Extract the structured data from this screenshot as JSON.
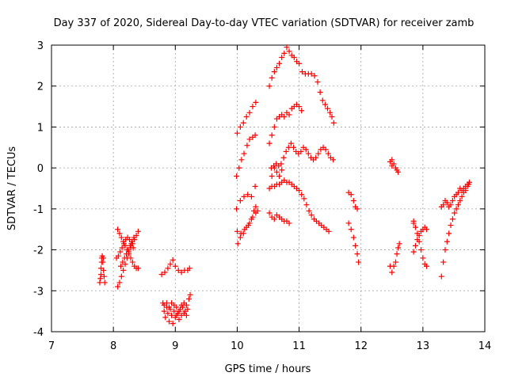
{
  "chart_data": {
    "type": "scatter",
    "title": "Day 337 of 2020, Sidereal Day-to-day VTEC variation (SDTVAR) for receiver zamb",
    "xlabel": "GPS time / hours",
    "ylabel": "SDTVAR / TECUs",
    "xlim": [
      7,
      14
    ],
    "ylim": [
      -4,
      3
    ],
    "xticks": [
      "7",
      "8",
      "9",
      "10",
      "11",
      "12",
      "13",
      "14"
    ],
    "yticks": [
      "-4",
      "-3",
      "-2",
      "-1",
      "0",
      "1",
      "2",
      "3"
    ],
    "grid": true,
    "marker": "+",
    "color": "#ff0000",
    "series": [
      {
        "points": [
          [
            7.78,
            -2.8
          ],
          [
            7.79,
            -2.7
          ],
          [
            7.8,
            -2.6
          ],
          [
            7.8,
            -2.45
          ],
          [
            7.81,
            -2.3
          ],
          [
            7.81,
            -2.2
          ],
          [
            7.82,
            -2.15
          ],
          [
            7.83,
            -2.3
          ],
          [
            7.84,
            -2.5
          ],
          [
            7.85,
            -2.65
          ],
          [
            7.86,
            -2.8
          ],
          [
            7.84,
            -2.2
          ],
          [
            8.07,
            -2.9
          ],
          [
            8.1,
            -2.8
          ],
          [
            8.13,
            -2.65
          ],
          [
            8.16,
            -2.5
          ],
          [
            8.19,
            -2.35
          ],
          [
            8.22,
            -2.2
          ],
          [
            8.25,
            -2.05
          ],
          [
            8.28,
            -1.95
          ],
          [
            8.31,
            -1.85
          ],
          [
            8.34,
            -1.75
          ],
          [
            8.37,
            -1.65
          ],
          [
            8.4,
            -1.55
          ],
          [
            8.07,
            -1.5
          ],
          [
            8.1,
            -1.6
          ],
          [
            8.13,
            -1.7
          ],
          [
            8.16,
            -1.8
          ],
          [
            8.19,
            -1.9
          ],
          [
            8.22,
            -2.0
          ],
          [
            8.25,
            -2.1
          ],
          [
            8.28,
            -2.2
          ],
          [
            8.31,
            -2.3
          ],
          [
            8.34,
            -2.4
          ],
          [
            8.37,
            -2.45
          ],
          [
            8.4,
            -2.45
          ],
          [
            8.05,
            -2.2
          ],
          [
            8.08,
            -2.15
          ],
          [
            8.11,
            -2.05
          ],
          [
            8.14,
            -1.95
          ],
          [
            8.17,
            -1.85
          ],
          [
            8.2,
            -1.75
          ],
          [
            8.23,
            -1.7
          ],
          [
            8.26,
            -1.75
          ],
          [
            8.29,
            -1.85
          ],
          [
            8.32,
            -1.95
          ],
          [
            8.12,
            -2.4
          ],
          [
            8.15,
            -2.3
          ],
          [
            8.18,
            -2.2
          ],
          [
            8.21,
            -2.1
          ],
          [
            8.24,
            -2.0
          ],
          [
            8.27,
            -1.9
          ],
          [
            8.3,
            -1.8
          ],
          [
            8.33,
            -1.7
          ],
          [
            8.78,
            -2.6
          ],
          [
            8.83,
            -2.55
          ],
          [
            8.88,
            -2.45
          ],
          [
            8.92,
            -2.35
          ],
          [
            8.96,
            -2.25
          ],
          [
            9.0,
            -2.4
          ],
          [
            9.05,
            -2.5
          ],
          [
            9.1,
            -2.55
          ],
          [
            9.15,
            -2.5
          ],
          [
            9.2,
            -2.5
          ],
          [
            9.23,
            -2.45
          ],
          [
            8.8,
            -3.3
          ],
          [
            8.82,
            -3.5
          ],
          [
            8.84,
            -3.65
          ],
          [
            8.86,
            -3.4
          ],
          [
            8.88,
            -3.55
          ],
          [
            8.9,
            -3.75
          ],
          [
            8.92,
            -3.45
          ],
          [
            8.94,
            -3.6
          ],
          [
            8.96,
            -3.8
          ],
          [
            8.98,
            -3.5
          ],
          [
            9.0,
            -3.65
          ],
          [
            9.02,
            -3.4
          ],
          [
            9.04,
            -3.55
          ],
          [
            9.06,
            -3.7
          ],
          [
            9.08,
            -3.45
          ],
          [
            9.1,
            -3.6
          ],
          [
            9.12,
            -3.4
          ],
          [
            9.14,
            -3.55
          ],
          [
            9.16,
            -3.5
          ],
          [
            9.18,
            -3.35
          ],
          [
            9.2,
            -3.45
          ],
          [
            9.22,
            -3.2
          ],
          [
            9.24,
            -3.1
          ],
          [
            8.82,
            -3.35
          ],
          [
            8.86,
            -3.3
          ],
          [
            8.9,
            -3.4
          ],
          [
            8.94,
            -3.3
          ],
          [
            8.98,
            -3.35
          ],
          [
            9.02,
            -3.6
          ],
          [
            9.06,
            -3.5
          ],
          [
            9.1,
            -3.35
          ],
          [
            9.14,
            -3.3
          ],
          [
            9.18,
            -3.6
          ],
          [
            10.0,
            0.85
          ],
          [
            10.05,
            1.0
          ],
          [
            10.1,
            1.1
          ],
          [
            10.15,
            1.25
          ],
          [
            10.2,
            1.35
          ],
          [
            10.25,
            1.5
          ],
          [
            10.3,
            1.6
          ],
          [
            9.99,
            -0.2
          ],
          [
            10.03,
            0.0
          ],
          [
            10.07,
            0.2
          ],
          [
            10.11,
            0.35
          ],
          [
            10.16,
            0.55
          ],
          [
            10.2,
            0.7
          ],
          [
            10.25,
            0.75
          ],
          [
            10.29,
            0.8
          ],
          [
            9.99,
            -1.0
          ],
          [
            10.05,
            -0.8
          ],
          [
            10.11,
            -0.7
          ],
          [
            10.17,
            -0.65
          ],
          [
            10.23,
            -0.7
          ],
          [
            10.29,
            -0.45
          ],
          [
            10.0,
            -1.55
          ],
          [
            10.06,
            -1.6
          ],
          [
            10.12,
            -1.5
          ],
          [
            10.18,
            -1.4
          ],
          [
            10.23,
            -1.25
          ],
          [
            10.27,
            -1.05
          ],
          [
            10.3,
            -0.95
          ],
          [
            10.33,
            -1.05
          ],
          [
            10.01,
            -1.85
          ],
          [
            10.05,
            -1.7
          ],
          [
            10.1,
            -1.6
          ],
          [
            10.15,
            -1.45
          ],
          [
            10.2,
            -1.35
          ],
          [
            10.25,
            -1.2
          ],
          [
            10.3,
            -1.1
          ],
          [
            10.52,
            2.0
          ],
          [
            10.56,
            2.2
          ],
          [
            10.6,
            2.35
          ],
          [
            10.64,
            2.45
          ],
          [
            10.68,
            2.55
          ],
          [
            10.72,
            2.7
          ],
          [
            10.76,
            2.8
          ],
          [
            10.8,
            2.95
          ],
          [
            10.84,
            2.85
          ],
          [
            10.88,
            2.75
          ],
          [
            10.92,
            2.7
          ],
          [
            10.96,
            2.6
          ],
          [
            11.0,
            2.55
          ],
          [
            11.05,
            2.35
          ],
          [
            11.1,
            2.3
          ],
          [
            11.15,
            2.3
          ],
          [
            11.2,
            2.3
          ],
          [
            11.25,
            2.25
          ],
          [
            11.3,
            2.1
          ],
          [
            11.34,
            1.85
          ],
          [
            11.38,
            1.65
          ],
          [
            11.42,
            1.55
          ],
          [
            11.46,
            1.45
          ],
          [
            11.5,
            1.35
          ],
          [
            11.53,
            1.25
          ],
          [
            11.56,
            1.1
          ],
          [
            10.52,
            0.6
          ],
          [
            10.56,
            0.8
          ],
          [
            10.6,
            1.0
          ],
          [
            10.64,
            1.2
          ],
          [
            10.68,
            1.25
          ],
          [
            10.72,
            1.3
          ],
          [
            10.76,
            1.25
          ],
          [
            10.8,
            1.35
          ],
          [
            10.84,
            1.3
          ],
          [
            10.88,
            1.45
          ],
          [
            10.92,
            1.5
          ],
          [
            10.96,
            1.55
          ],
          [
            11.0,
            1.5
          ],
          [
            11.04,
            1.4
          ],
          [
            10.55,
            0.0
          ],
          [
            10.59,
            0.05
          ],
          [
            10.63,
            0.1
          ],
          [
            10.67,
            0.05
          ],
          [
            10.71,
            0.1
          ],
          [
            10.75,
            0.25
          ],
          [
            10.79,
            0.4
          ],
          [
            10.83,
            0.5
          ],
          [
            10.87,
            0.6
          ],
          [
            10.91,
            0.5
          ],
          [
            10.95,
            0.4
          ],
          [
            10.99,
            0.35
          ],
          [
            11.03,
            0.4
          ],
          [
            11.07,
            0.5
          ],
          [
            11.11,
            0.45
          ],
          [
            11.15,
            0.35
          ],
          [
            11.19,
            0.25
          ],
          [
            11.23,
            0.2
          ],
          [
            11.27,
            0.25
          ],
          [
            11.31,
            0.35
          ],
          [
            11.35,
            0.45
          ],
          [
            11.39,
            0.5
          ],
          [
            11.43,
            0.45
          ],
          [
            11.47,
            0.35
          ],
          [
            11.51,
            0.25
          ],
          [
            11.55,
            0.2
          ],
          [
            10.52,
            -0.5
          ],
          [
            10.56,
            -0.45
          ],
          [
            10.6,
            -0.45
          ],
          [
            10.64,
            -0.4
          ],
          [
            10.68,
            -0.4
          ],
          [
            10.72,
            -0.35
          ],
          [
            10.76,
            -0.3
          ],
          [
            10.8,
            -0.35
          ],
          [
            10.84,
            -0.35
          ],
          [
            10.88,
            -0.4
          ],
          [
            10.92,
            -0.45
          ],
          [
            10.96,
            -0.5
          ],
          [
            11.0,
            -0.55
          ],
          [
            11.04,
            -0.65
          ],
          [
            11.08,
            -0.75
          ],
          [
            11.12,
            -0.9
          ],
          [
            11.16,
            -1.05
          ],
          [
            11.2,
            -1.15
          ],
          [
            11.24,
            -1.25
          ],
          [
            11.28,
            -1.3
          ],
          [
            11.32,
            -1.35
          ],
          [
            11.36,
            -1.4
          ],
          [
            11.4,
            -1.45
          ],
          [
            11.44,
            -1.5
          ],
          [
            11.48,
            -1.55
          ],
          [
            10.52,
            -1.1
          ],
          [
            10.56,
            -1.2
          ],
          [
            10.6,
            -1.25
          ],
          [
            10.64,
            -1.15
          ],
          [
            10.68,
            -1.2
          ],
          [
            10.72,
            -1.25
          ],
          [
            10.76,
            -1.3
          ],
          [
            10.8,
            -1.3
          ],
          [
            10.84,
            -1.35
          ],
          [
            10.56,
            -0.2
          ],
          [
            10.6,
            0.0
          ],
          [
            10.64,
            -0.1
          ],
          [
            10.68,
            -0.2
          ],
          [
            10.72,
            -0.05
          ],
          [
            11.8,
            -0.6
          ],
          [
            11.84,
            -0.65
          ],
          [
            11.88,
            -0.8
          ],
          [
            11.91,
            -0.95
          ],
          [
            11.94,
            -1.0
          ],
          [
            11.8,
            -1.35
          ],
          [
            11.84,
            -1.5
          ],
          [
            11.88,
            -1.7
          ],
          [
            11.91,
            -1.9
          ],
          [
            11.94,
            -2.1
          ],
          [
            11.96,
            -2.3
          ],
          [
            12.47,
            -2.4
          ],
          [
            12.5,
            -2.55
          ],
          [
            12.53,
            -2.4
          ],
          [
            12.56,
            -2.3
          ],
          [
            12.58,
            -2.1
          ],
          [
            12.6,
            -1.95
          ],
          [
            12.62,
            -1.85
          ],
          [
            12.47,
            0.15
          ],
          [
            12.5,
            0.2
          ],
          [
            12.53,
            0.1
          ],
          [
            12.56,
            0.0
          ],
          [
            12.58,
            -0.05
          ],
          [
            12.6,
            -0.1
          ],
          [
            12.5,
            0.05
          ],
          [
            12.85,
            -2.05
          ],
          [
            12.88,
            -1.9
          ],
          [
            12.91,
            -1.75
          ],
          [
            12.94,
            -1.65
          ],
          [
            12.97,
            -1.55
          ],
          [
            13.0,
            -1.5
          ],
          [
            13.03,
            -1.45
          ],
          [
            13.06,
            -1.5
          ],
          [
            12.85,
            -1.35
          ],
          [
            12.88,
            -1.45
          ],
          [
            12.91,
            -1.6
          ],
          [
            12.94,
            -1.8
          ],
          [
            12.97,
            -2.0
          ],
          [
            13.0,
            -2.2
          ],
          [
            13.03,
            -2.35
          ],
          [
            13.06,
            -2.4
          ],
          [
            12.85,
            -1.3
          ],
          [
            13.3,
            -2.65
          ],
          [
            13.33,
            -2.3
          ],
          [
            13.36,
            -2.0
          ],
          [
            13.39,
            -1.8
          ],
          [
            13.42,
            -1.6
          ],
          [
            13.45,
            -1.4
          ],
          [
            13.48,
            -1.25
          ],
          [
            13.51,
            -1.1
          ],
          [
            13.54,
            -1.0
          ],
          [
            13.57,
            -0.9
          ],
          [
            13.6,
            -0.8
          ],
          [
            13.63,
            -0.7
          ],
          [
            13.66,
            -0.6
          ],
          [
            13.69,
            -0.55
          ],
          [
            13.72,
            -0.45
          ],
          [
            13.74,
            -0.4
          ],
          [
            13.3,
            -0.95
          ],
          [
            13.33,
            -0.9
          ],
          [
            13.36,
            -0.8
          ],
          [
            13.39,
            -0.85
          ],
          [
            13.42,
            -0.95
          ],
          [
            13.45,
            -0.9
          ],
          [
            13.48,
            -0.8
          ],
          [
            13.51,
            -0.7
          ],
          [
            13.54,
            -0.65
          ],
          [
            13.57,
            -0.6
          ],
          [
            13.6,
            -0.5
          ],
          [
            13.63,
            -0.55
          ],
          [
            13.66,
            -0.5
          ],
          [
            13.69,
            -0.45
          ],
          [
            13.72,
            -0.4
          ],
          [
            13.75,
            -0.35
          ]
        ]
      }
    ]
  }
}
